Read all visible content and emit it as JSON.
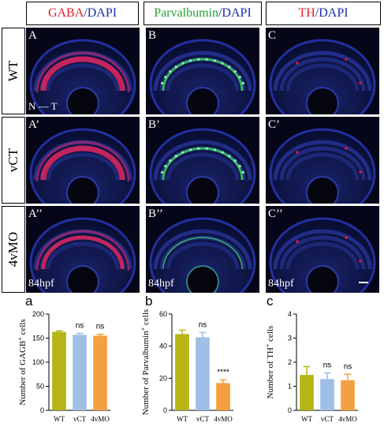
{
  "headers": [
    {
      "parts": [
        {
          "text": "GABA",
          "color": "#e21b2a"
        },
        {
          "text": "/DAPI",
          "color": "#1a2da8"
        }
      ]
    },
    {
      "parts": [
        {
          "text": "Parvalbumin",
          "color": "#23a334"
        },
        {
          "text": "/DAPI",
          "color": "#1a2da8"
        }
      ]
    },
    {
      "parts": [
        {
          "text": "TH",
          "color": "#e21b2a"
        },
        {
          "text": "/DAPI",
          "color": "#1a2da8"
        }
      ]
    }
  ],
  "rows": [
    {
      "label": "WT",
      "panels": [
        "A",
        "B",
        "C"
      ]
    },
    {
      "label": "vCT",
      "panels": [
        "A’",
        "B’",
        "C’"
      ]
    },
    {
      "label": "4vMO",
      "panels": [
        "A’’",
        "B’’",
        "C’’"
      ]
    }
  ],
  "orientation_label": "N — T",
  "timepoint_label": "84hpf",
  "panel_colors": {
    "dapi": "#2432a8",
    "gaba": "#e0245a",
    "pv": "#3ccf5a",
    "th": "#e01838"
  },
  "chart_data": [
    {
      "panel_letter": "a",
      "type": "bar",
      "categories": [
        "WT",
        "vCT",
        "4vMO"
      ],
      "values": [
        163,
        157,
        155
      ],
      "errors": [
        2,
        3,
        3
      ],
      "colors": [
        "#b5b515",
        "#9fbfe6",
        "#f4a040"
      ],
      "annotations": [
        "",
        "ns",
        "ns"
      ],
      "ylabel_parts": [
        "Number of GAGB",
        "+",
        " cells"
      ],
      "ylim": [
        0,
        200
      ],
      "yticks": [
        0,
        50,
        100,
        150,
        200
      ]
    },
    {
      "panel_letter": "b",
      "type": "bar",
      "categories": [
        "WT",
        "vCT",
        "4vMO"
      ],
      "values": [
        47.5,
        45.5,
        17
      ],
      "errors": [
        2.5,
        3,
        2
      ],
      "colors": [
        "#b5b515",
        "#9fbfe6",
        "#f4a040"
      ],
      "annotations": [
        "",
        "ns",
        "****"
      ],
      "ylabel_parts": [
        "Number of Parvalbumin",
        "+",
        " cells"
      ],
      "ylim": [
        0,
        60
      ],
      "yticks": [
        0,
        20,
        40,
        60
      ]
    },
    {
      "panel_letter": "c",
      "type": "bar",
      "categories": [
        "WT",
        "vCT",
        "4vMO"
      ],
      "values": [
        1.47,
        1.3,
        1.25
      ],
      "errors": [
        0.35,
        0.25,
        0.25
      ],
      "colors": [
        "#b5b515",
        "#9fbfe6",
        "#f4a040"
      ],
      "annotations": [
        "",
        "ns",
        "ns"
      ],
      "ylabel_parts": [
        "Number of TH",
        "+",
        " cells"
      ],
      "ylim": [
        0,
        4
      ],
      "yticks": [
        0,
        1,
        2,
        3,
        4
      ]
    }
  ]
}
